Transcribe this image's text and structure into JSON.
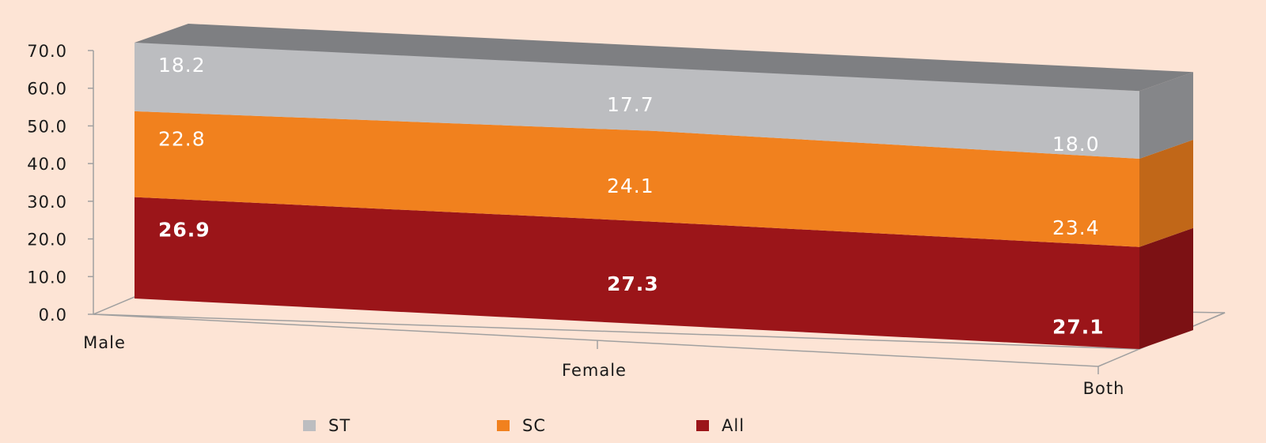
{
  "chart_data": {
    "type": "bar",
    "stacked": true,
    "three_d": true,
    "categories": [
      "Male",
      "Female",
      "Both"
    ],
    "series": [
      {
        "name": "All",
        "values": [
          26.9,
          27.3,
          27.1
        ],
        "color": "#9b1519",
        "label_bold": true
      },
      {
        "name": "SC",
        "values": [
          22.8,
          24.1,
          23.4
        ],
        "color": "#f1811e",
        "label_bold": false
      },
      {
        "name": "ST",
        "values": [
          18.2,
          17.7,
          18.0
        ],
        "color": "#bcbdc0",
        "label_bold": false
      }
    ],
    "y_ticks": [
      "0.0",
      "10.0",
      "20.0",
      "30.0",
      "40.0",
      "50.0",
      "60.0",
      "70.0"
    ],
    "ylim": [
      0,
      70
    ],
    "legend_order": [
      "ST",
      "SC",
      "All"
    ],
    "legend_position": "bottom",
    "grid": false
  }
}
